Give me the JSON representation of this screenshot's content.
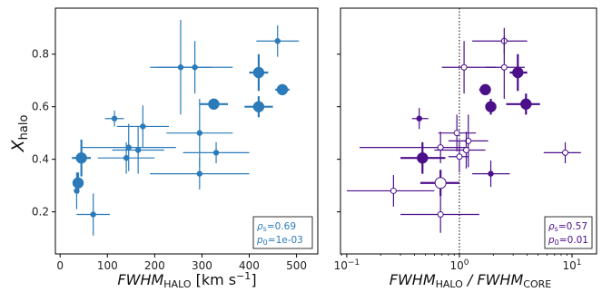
{
  "chart_data": [
    {
      "type": "scatter",
      "xlabel": "FWHM",
      "xlabel_sub": "HALO",
      "xlabel_unit": " [km s",
      "xlabel_unit_sup": "−1",
      "xlabel_unit_end": "]",
      "ylabel": "X",
      "ylabel_sub": "halo",
      "xlim": [
        -10,
        545
      ],
      "ylim": [
        0.04,
        0.975
      ],
      "xticks": [
        0,
        100,
        200,
        300,
        400,
        500
      ],
      "xtick_labels": [
        "0",
        "100",
        "200",
        "300",
        "400",
        "500"
      ],
      "yticks": [
        0.2,
        0.4,
        0.6,
        0.8
      ],
      "ytick_labels": [
        "0.2",
        "0.4",
        "0.6",
        "0.8"
      ],
      "color": "#2b7bba",
      "annotation": {
        "rho_s": "=0.69",
        "p_0": "=1e-03"
      },
      "points": [
        {
          "x": 460,
          "y": 0.85,
          "xerr": 45,
          "yerr": 0.06,
          "size": "small"
        },
        {
          "x": 255,
          "y": 0.75,
          "xerr": 65,
          "yerr": 0.18,
          "size": "small"
        },
        {
          "x": 285,
          "y": 0.75,
          "xerr": 80,
          "yerr": 0.1,
          "size": "small"
        },
        {
          "x": 420,
          "y": 0.73,
          "xerr": 20,
          "yerr": 0.07,
          "size": "large"
        },
        {
          "x": 470,
          "y": 0.665,
          "xerr": 15,
          "yerr": 0.01,
          "size": "large"
        },
        {
          "x": 325,
          "y": 0.61,
          "xerr": 30,
          "yerr": 0.02,
          "size": "large"
        },
        {
          "x": 420,
          "y": 0.6,
          "xerr": 30,
          "yerr": 0.04,
          "size": "large"
        },
        {
          "x": 115,
          "y": 0.555,
          "xerr": 20,
          "yerr": 0.03,
          "size": "small"
        },
        {
          "x": 175,
          "y": 0.525,
          "xerr": 55,
          "yerr": 0.08,
          "size": "small"
        },
        {
          "x": 295,
          "y": 0.5,
          "xerr": 70,
          "yerr": 0.13,
          "size": "small"
        },
        {
          "x": 145,
          "y": 0.445,
          "xerr": 100,
          "yerr": 0.09,
          "size": "small"
        },
        {
          "x": 165,
          "y": 0.435,
          "xerr": 55,
          "yerr": 0.09,
          "size": "small"
        },
        {
          "x": 330,
          "y": 0.425,
          "xerr": 70,
          "yerr": 0.04,
          "size": "small"
        },
        {
          "x": 140,
          "y": 0.405,
          "xerr": 60,
          "yerr": 0.06,
          "size": "small"
        },
        {
          "x": 45,
          "y": 0.405,
          "xerr": 20,
          "yerr": 0.07,
          "size": "large"
        },
        {
          "x": 295,
          "y": 0.345,
          "xerr": 105,
          "yerr": 0.06,
          "size": "small"
        },
        {
          "x": 38,
          "y": 0.31,
          "xerr": 10,
          "yerr": 0.04,
          "size": "large"
        },
        {
          "x": 35,
          "y": 0.28,
          "xerr": 5,
          "yerr": 0.07,
          "size": "small"
        },
        {
          "x": 70,
          "y": 0.19,
          "xerr": 35,
          "yerr": 0.08,
          "size": "small"
        }
      ]
    },
    {
      "type": "scatter",
      "xscale": "log",
      "xlabel": "FWHM",
      "xlabel_sub": "HALO",
      "xlabel_mid": " / FWHM",
      "xlabel_sub2": "CORE",
      "xlim": [
        0.088,
        16.5
      ],
      "ylim": [
        0.04,
        0.975
      ],
      "xticks": [
        0.1,
        1,
        10
      ],
      "xtick_labels": [
        {
          "base": "10",
          "exp": "−1"
        },
        {
          "base": "10",
          "exp": "0"
        },
        {
          "base": "10",
          "exp": "1"
        }
      ],
      "vline": 1,
      "color": "#4b0f8a",
      "annotation": {
        "rho_s": "=0.57",
        "p_0": "=0.01"
      },
      "points": [
        {
          "x": 2.5,
          "y": 0.85,
          "xerr": [
            1.3,
            4.0
          ],
          "yerr": 0.05,
          "size": "small",
          "fill": "open"
        },
        {
          "x": 1.1,
          "y": 0.75,
          "xerr": [
            0.7,
            2.1
          ],
          "yerr": 0.1,
          "size": "small",
          "fill": "open"
        },
        {
          "x": 2.5,
          "y": 0.75,
          "xerr": [
            1.7,
            3.8
          ],
          "yerr": 0.12,
          "size": "small",
          "fill": "open"
        },
        {
          "x": 3.3,
          "y": 0.73,
          "xerr": [
            2.8,
            4.0
          ],
          "yerr": 0.07,
          "size": "large",
          "fill": "solid"
        },
        {
          "x": 1.7,
          "y": 0.665,
          "xerr": [
            1.5,
            1.9
          ],
          "yerr": 0.01,
          "size": "large",
          "fill": "solid"
        },
        {
          "x": 1.9,
          "y": 0.6,
          "xerr": [
            1.7,
            2.1
          ],
          "yerr": 0.03,
          "size": "large",
          "fill": "solid"
        },
        {
          "x": 3.9,
          "y": 0.61,
          "xerr": [
            2.6,
            5.2
          ],
          "yerr": 0.04,
          "size": "large",
          "fill": "solid"
        },
        {
          "x": 0.44,
          "y": 0.555,
          "xerr": [
            0.38,
            0.53
          ],
          "yerr": 0.04,
          "size": "small",
          "fill": "solid"
        },
        {
          "x": 0.95,
          "y": 0.5,
          "xerr": [
            0.65,
            1.4
          ],
          "yerr": 0.07,
          "size": "small",
          "fill": "open"
        },
        {
          "x": 1.2,
          "y": 0.47,
          "xerr": [
            0.8,
            1.8
          ],
          "yerr": 0.1,
          "size": "small",
          "fill": "open"
        },
        {
          "x": 0.68,
          "y": 0.445,
          "xerr": [
            0.13,
            1.2
          ],
          "yerr": 0.06,
          "size": "small",
          "fill": "open"
        },
        {
          "x": 1.15,
          "y": 0.435,
          "xerr": [
            0.6,
            1.7
          ],
          "yerr": 0.07,
          "size": "small",
          "fill": "open"
        },
        {
          "x": 8.7,
          "y": 0.425,
          "xerr": [
            5.6,
            12.0
          ],
          "yerr": 0.04,
          "size": "small",
          "fill": "open"
        },
        {
          "x": 1.0,
          "y": 0.41,
          "xerr": [
            0.8,
            1.2
          ],
          "yerr": 0.06,
          "size": "small",
          "fill": "open"
        },
        {
          "x": 0.47,
          "y": 0.405,
          "xerr": [
            0.3,
            0.75
          ],
          "yerr": 0.06,
          "size": "large",
          "fill": "solid"
        },
        {
          "x": 1.9,
          "y": 0.345,
          "xerr": [
            1.3,
            2.8
          ],
          "yerr": 0.05,
          "size": "small",
          "fill": "solid"
        },
        {
          "x": 0.68,
          "y": 0.31,
          "xerr": [
            0.45,
            1.0
          ],
          "yerr": 0.05,
          "size": "large",
          "fill": "open"
        },
        {
          "x": 0.26,
          "y": 0.28,
          "xerr": [
            0.1,
            0.6
          ],
          "yerr": 0.06,
          "size": "small",
          "fill": "open"
        },
        {
          "x": 0.68,
          "y": 0.19,
          "xerr": [
            0.3,
            1.5
          ],
          "yerr": 0.07,
          "size": "small",
          "fill": "open"
        }
      ]
    }
  ]
}
